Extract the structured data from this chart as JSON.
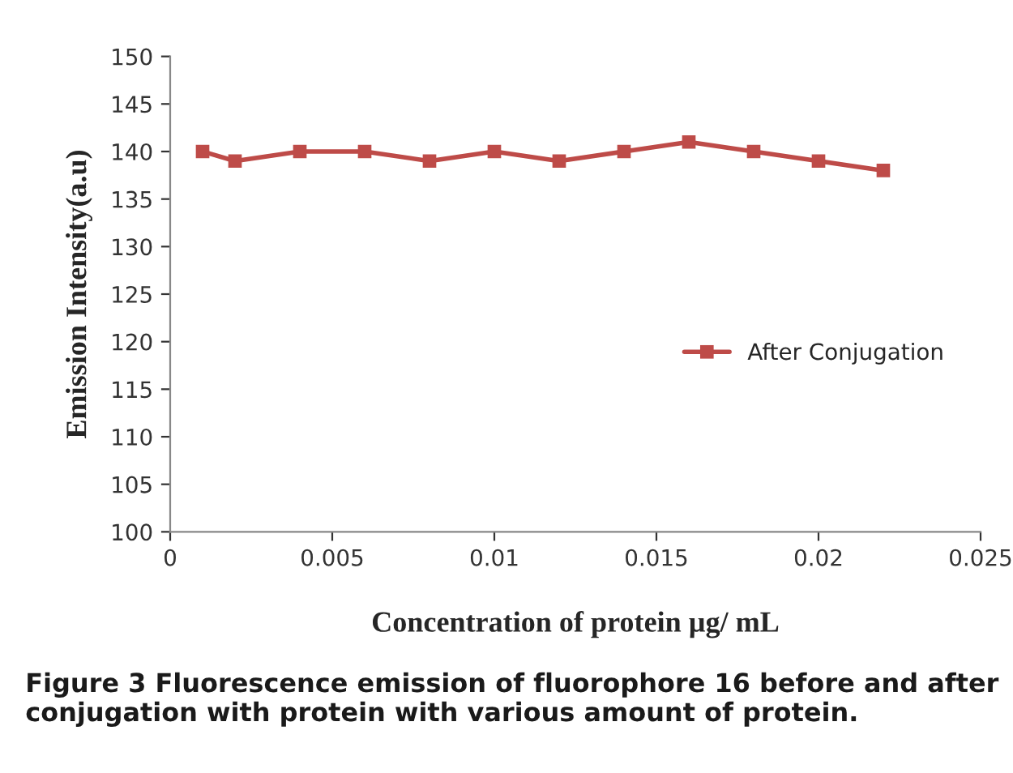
{
  "chart_data": {
    "type": "line",
    "xlabel": "Concentration of protein µg/ mL",
    "ylabel": "Emission Intensity(a.u)",
    "x": [
      0.001,
      0.002,
      0.004,
      0.006,
      0.008,
      0.01,
      0.012,
      0.014,
      0.016,
      0.018,
      0.02,
      0.022
    ],
    "series": [
      {
        "name": "After Conjugation",
        "color": "#be4b48",
        "values": [
          140,
          139,
          140,
          140,
          139,
          140,
          139,
          140,
          141,
          140,
          139,
          138
        ]
      }
    ],
    "xlim": [
      0,
      0.025
    ],
    "xticks": [
      0,
      0.005,
      0.01,
      0.015,
      0.02,
      0.025
    ],
    "ylim": [
      100,
      150
    ],
    "yticks": [
      100,
      105,
      110,
      115,
      120,
      125,
      130,
      135,
      140,
      145,
      150
    ],
    "marker": "square",
    "line_style": "solid",
    "grid": false,
    "legend": "right",
    "annotations": [
      "Figure 3 Fluorescence emission of fluorophore 16 before and after conjugation with protein with various amount of protein."
    ]
  }
}
